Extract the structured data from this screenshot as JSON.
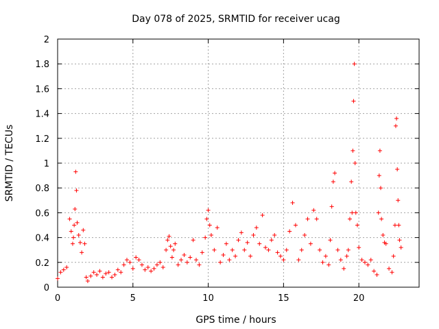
{
  "chart_data": {
    "type": "scatter",
    "title": "Day 078 of 2025, SRMTID for receiver ucag",
    "xlabel": "GPS time / hours",
    "ylabel": "SRMTID / TECUs",
    "xlim": [
      0,
      24
    ],
    "ylim": [
      0,
      2
    ],
    "xticks": [
      0,
      5,
      10,
      15,
      20
    ],
    "xtick_labels": [
      "0",
      "5",
      "10",
      "15",
      "20"
    ],
    "yticks": [
      0,
      0.2,
      0.4,
      0.6,
      0.8,
      1,
      1.2,
      1.4,
      1.6,
      1.8,
      2
    ],
    "ytick_labels": [
      "0",
      "0.2",
      "0.4",
      "0.6",
      "0.8",
      "1",
      "1.2",
      "1.4",
      "1.6",
      "1.8",
      "2"
    ],
    "grid": true,
    "marker": "plus",
    "color": "#ff0000",
    "series": [
      {
        "name": "SRMTID",
        "x": [
          0.0,
          0.2,
          0.4,
          0.6,
          0.8,
          0.9,
          1.0,
          1.05,
          1.1,
          1.15,
          1.2,
          1.25,
          1.3,
          1.4,
          1.5,
          1.6,
          1.7,
          1.8,
          1.9,
          2.0,
          2.2,
          2.4,
          2.6,
          2.8,
          3.0,
          3.2,
          3.4,
          3.6,
          3.8,
          4.0,
          4.2,
          4.4,
          4.6,
          4.8,
          5.0,
          5.2,
          5.4,
          5.6,
          5.8,
          6.0,
          6.2,
          6.4,
          6.6,
          6.8,
          7.0,
          7.2,
          7.3,
          7.4,
          7.5,
          7.6,
          7.7,
          7.8,
          8.0,
          8.2,
          8.4,
          8.6,
          8.8,
          9.0,
          9.2,
          9.4,
          9.6,
          9.8,
          9.9,
          10.0,
          10.1,
          10.2,
          10.4,
          10.6,
          10.8,
          11.0,
          11.2,
          11.4,
          11.6,
          11.8,
          12.0,
          12.2,
          12.4,
          12.6,
          12.8,
          13.0,
          13.2,
          13.4,
          13.6,
          13.8,
          14.0,
          14.2,
          14.4,
          14.6,
          14.8,
          15.0,
          15.2,
          15.4,
          15.6,
          15.8,
          16.0,
          16.2,
          16.4,
          16.6,
          16.8,
          17.0,
          17.2,
          17.4,
          17.6,
          17.8,
          18.0,
          18.1,
          18.2,
          18.3,
          18.4,
          18.6,
          18.8,
          19.0,
          19.2,
          19.3,
          19.4,
          19.5,
          19.55,
          19.6,
          19.65,
          19.7,
          19.75,
          19.8,
          19.9,
          20.0,
          20.2,
          20.4,
          20.6,
          20.8,
          21.0,
          21.2,
          21.3,
          21.35,
          21.4,
          21.45,
          21.5,
          21.6,
          21.7,
          21.8,
          22.0,
          22.2,
          22.3,
          22.4,
          22.45,
          22.5,
          22.55,
          22.6,
          22.65,
          22.7,
          22.8
        ],
        "y": [
          0.07,
          0.12,
          0.14,
          0.16,
          0.55,
          0.45,
          0.35,
          0.4,
          0.5,
          0.63,
          0.93,
          0.78,
          0.52,
          0.42,
          0.36,
          0.28,
          0.46,
          0.35,
          0.08,
          0.05,
          0.09,
          0.12,
          0.1,
          0.13,
          0.08,
          0.11,
          0.12,
          0.08,
          0.1,
          0.14,
          0.12,
          0.18,
          0.22,
          0.2,
          0.15,
          0.24,
          0.22,
          0.18,
          0.14,
          0.16,
          0.13,
          0.15,
          0.18,
          0.2,
          0.16,
          0.3,
          0.38,
          0.41,
          0.33,
          0.24,
          0.3,
          0.35,
          0.18,
          0.22,
          0.26,
          0.2,
          0.24,
          0.38,
          0.22,
          0.18,
          0.28,
          0.4,
          0.55,
          0.62,
          0.5,
          0.42,
          0.3,
          0.48,
          0.2,
          0.26,
          0.35,
          0.22,
          0.3,
          0.25,
          0.38,
          0.44,
          0.3,
          0.36,
          0.25,
          0.42,
          0.48,
          0.35,
          0.58,
          0.32,
          0.3,
          0.38,
          0.42,
          0.28,
          0.25,
          0.22,
          0.3,
          0.45,
          0.68,
          0.5,
          0.22,
          0.3,
          0.42,
          0.55,
          0.35,
          0.62,
          0.55,
          0.3,
          0.2,
          0.25,
          0.18,
          0.38,
          0.65,
          0.85,
          0.92,
          0.3,
          0.22,
          0.15,
          0.25,
          0.3,
          0.55,
          0.85,
          0.6,
          1.1,
          1.5,
          1.8,
          1.0,
          0.6,
          0.5,
          0.32,
          0.22,
          0.2,
          0.18,
          0.22,
          0.13,
          0.1,
          0.6,
          0.9,
          1.1,
          0.8,
          0.55,
          0.42,
          0.36,
          0.35,
          0.15,
          0.12,
          0.25,
          0.5,
          1.3,
          1.36,
          0.95,
          0.7,
          0.5,
          0.38,
          0.32
        ]
      }
    ]
  }
}
